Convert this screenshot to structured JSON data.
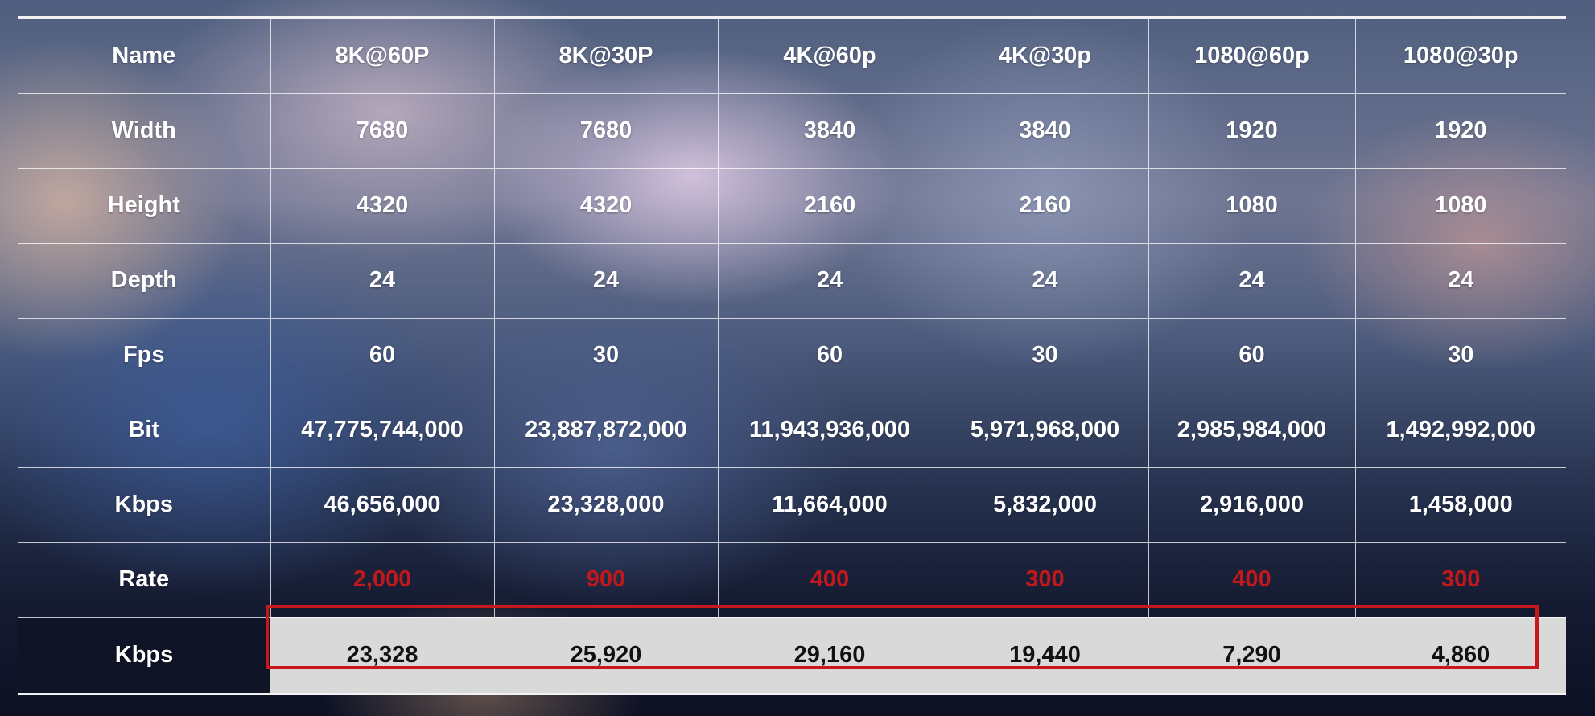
{
  "table": {
    "rows": [
      {
        "label": "Name",
        "cells": [
          "8K@60P",
          "8K@30P",
          "4K@60p",
          "4K@30p",
          "1080@60p",
          "1080@30p"
        ]
      },
      {
        "label": "Width",
        "cells": [
          "7680",
          "7680",
          "3840",
          "3840",
          "1920",
          "1920"
        ]
      },
      {
        "label": "Height",
        "cells": [
          "4320",
          "4320",
          "2160",
          "2160",
          "1080",
          "1080"
        ]
      },
      {
        "label": "Depth",
        "cells": [
          "24",
          "24",
          "24",
          "24",
          "24",
          "24"
        ]
      },
      {
        "label": "Fps",
        "cells": [
          "60",
          "30",
          "60",
          "30",
          "60",
          "30"
        ]
      },
      {
        "label": "Bit",
        "cells": [
          "47,775,744,000",
          "23,887,872,000",
          "11,943,936,000",
          "5,971,968,000",
          "2,985,984,000",
          "1,492,992,000"
        ]
      },
      {
        "label": "Kbps",
        "cells": [
          "46,656,000",
          "23,328,000",
          "11,664,000",
          "5,832,000",
          "2,916,000",
          "1,458,000"
        ]
      },
      {
        "label": "Rate",
        "cells": [
          "2,000",
          "900",
          "400",
          "300",
          "400",
          "300"
        ]
      },
      {
        "label": "Kbps",
        "cells": [
          "23,328",
          "25,920",
          "29,160",
          "19,440",
          "7,290",
          "4,860"
        ]
      }
    ]
  },
  "colors": {
    "rate_text": "#c0181c",
    "highlight_border": "#c8181e",
    "result_row_background": "#d9d9d9"
  }
}
